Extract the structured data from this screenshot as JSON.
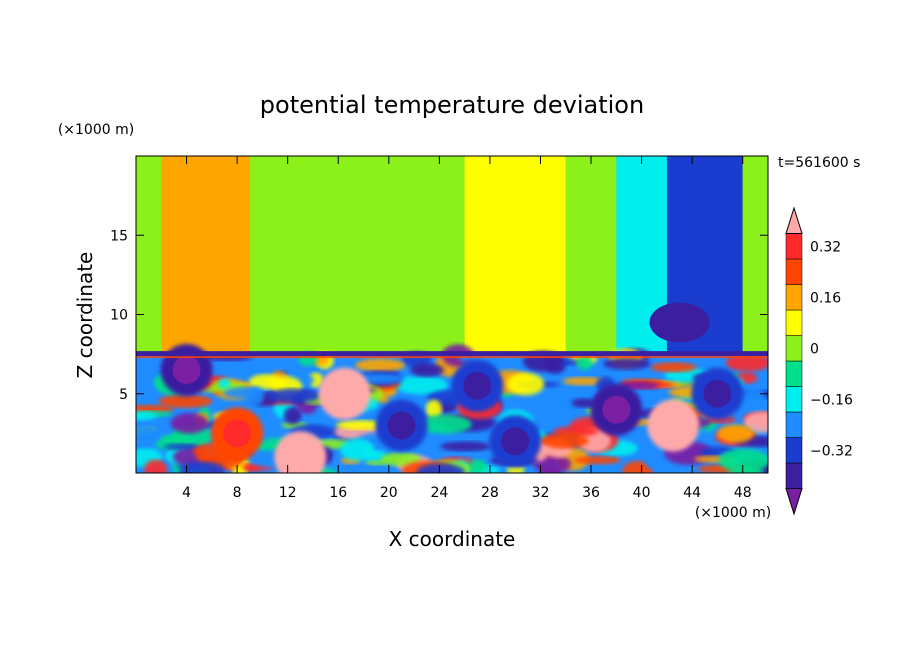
{
  "chart_data": {
    "type": "heatmap",
    "title": "potential temperature deviation",
    "time_label": "t=561600 s",
    "xlabel": "X coordinate",
    "ylabel": "Z coordinate",
    "x_unit": "(×1000 m)",
    "y_unit": "(×1000 m)",
    "xlim": [
      0,
      50
    ],
    "ylim": [
      0,
      20
    ],
    "x_ticks": [
      "4",
      "8",
      "12",
      "16",
      "20",
      "24",
      "28",
      "32",
      "36",
      "40",
      "44",
      "48"
    ],
    "y_ticks": [
      "5",
      "10",
      "15"
    ],
    "colorbar": {
      "labels": [
        "0.32",
        "0.16",
        "0",
        "−0.16",
        "−0.32"
      ],
      "levels": [
        -0.4,
        -0.32,
        -0.24,
        -0.16,
        -0.08,
        0,
        0.08,
        0.16,
        0.24,
        0.32,
        0.4
      ],
      "colors": [
        "#7a1fa2",
        "#3b1fa0",
        "#1a3ccf",
        "#1f8cff",
        "#00eeee",
        "#00e08a",
        "#8cf01a",
        "#ffff00",
        "#ffa500",
        "#ff4500",
        "#ff2a2a",
        "#ffaaaa"
      ]
    },
    "upper_regions": [
      {
        "x_range": [
          0,
          2
        ],
        "value": 0.0
      },
      {
        "x_range": [
          2,
          9
        ],
        "value": 0.16
      },
      {
        "x_range": [
          9,
          26
        ],
        "value": 0.05
      },
      {
        "x_range": [
          26,
          34
        ],
        "value": 0.08
      },
      {
        "x_range": [
          34,
          38
        ],
        "value": 0.05
      },
      {
        "x_range": [
          38,
          48
        ],
        "value": -0.1
      },
      {
        "x_range": [
          42,
          48
        ],
        "value": -0.3
      },
      {
        "x_range": [
          48,
          50
        ],
        "value": 0.0
      }
    ],
    "lower_features": [
      {
        "x": 4,
        "z": 6.5,
        "value": -0.35
      },
      {
        "x": 8,
        "z": 2.5,
        "value": 0.3
      },
      {
        "x": 13,
        "z": 1.0,
        "value": 0.4
      },
      {
        "x": 16.5,
        "z": 5.0,
        "value": 0.4
      },
      {
        "x": 21,
        "z": 3.0,
        "value": -0.3
      },
      {
        "x": 27,
        "z": 5.5,
        "value": -0.3
      },
      {
        "x": 30,
        "z": 2.0,
        "value": -0.3
      },
      {
        "x": 38,
        "z": 4.0,
        "value": -0.35
      },
      {
        "x": 42.5,
        "z": 3.0,
        "value": 0.4
      },
      {
        "x": 46,
        "z": 5.0,
        "value": -0.3
      }
    ],
    "inversion_height": 7.5
  }
}
